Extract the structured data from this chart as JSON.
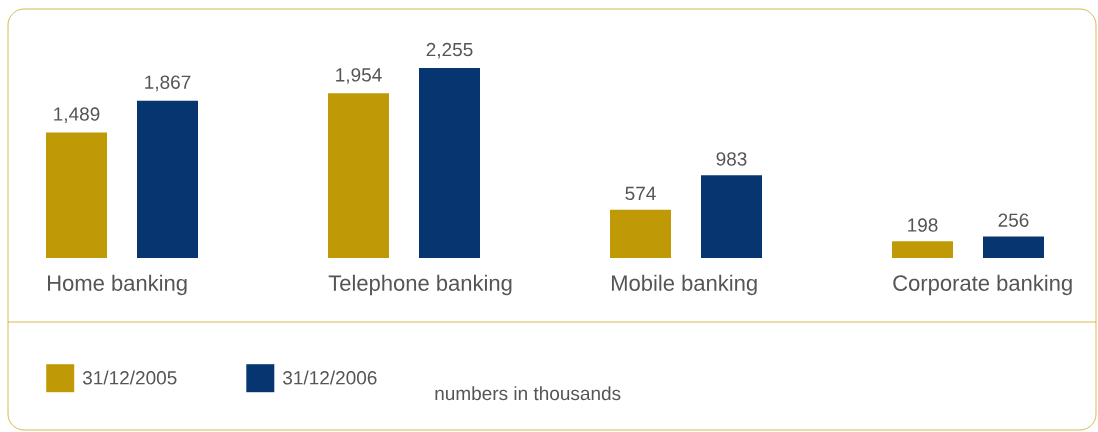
{
  "chart_data": {
    "type": "bar",
    "categories": [
      "Home banking",
      "Telephone banking",
      "Mobile banking",
      "Corporate banking"
    ],
    "series": [
      {
        "name": "31/12/2005",
        "color": "#c09a06",
        "values": [
          1489,
          1954,
          574,
          198
        ],
        "value_labels": [
          "1,489",
          "1,954",
          "574",
          "198"
        ]
      },
      {
        "name": "31/12/2006",
        "color": "#063570",
        "values": [
          1867,
          2255,
          983,
          256
        ],
        "value_labels": [
          "1,867",
          "2,255",
          "983",
          "256"
        ]
      }
    ],
    "legend": "bottom",
    "annotations": [
      "numbers in thousands"
    ]
  }
}
